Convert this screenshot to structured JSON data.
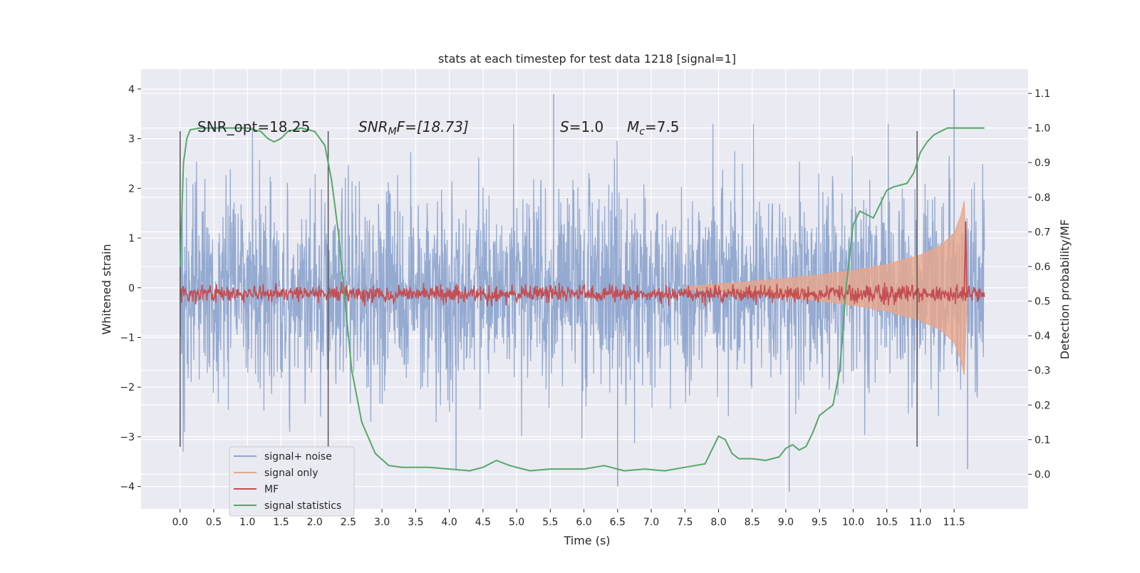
{
  "chart_data": {
    "type": "line",
    "title": "stats at each timestep for test data 1218 [signal=1]",
    "xlabel": "Time (s)",
    "ylabel": "Whitened strain",
    "y2label": "Detection probability/MF",
    "xlim": [
      -0.58,
      12.6
    ],
    "ylim": [
      -4.45,
      4.4
    ],
    "y2lim": [
      -0.1,
      1.17
    ],
    "x_ticks": [
      0.0,
      0.5,
      1.0,
      1.5,
      2.0,
      2.5,
      3.0,
      3.5,
      4.0,
      4.5,
      5.0,
      5.5,
      6.0,
      6.5,
      7.0,
      7.5,
      8.0,
      8.5,
      9.0,
      9.5,
      10.0,
      10.5,
      11.0,
      11.5
    ],
    "x_tick_labels": [
      "0.0",
      "0.5",
      "1.0",
      "1.5",
      "2.0",
      "2.5",
      "3.0",
      "3.5",
      "4.0",
      "4.5",
      "5.0",
      "5.5",
      "6.0",
      "6.5",
      "7.0",
      "7.5",
      "8.0",
      "8.5",
      "9.0",
      "9.5",
      "10.0",
      "10.5",
      "11.0",
      "11.5"
    ],
    "y_ticks": [
      -4,
      -3,
      -2,
      -1,
      0,
      1,
      2,
      3,
      4
    ],
    "y_tick_labels": [
      "−4",
      "−3",
      "−2",
      "−1",
      "0",
      "1",
      "2",
      "3",
      "4"
    ],
    "y2_ticks": [
      0.0,
      0.1,
      0.2,
      0.3,
      0.4,
      0.5,
      0.6,
      0.7,
      0.8,
      0.9,
      1.0,
      1.1
    ],
    "y2_tick_labels": [
      "0.0",
      "0.1",
      "0.2",
      "0.3",
      "0.4",
      "0.5",
      "0.6",
      "0.7",
      "0.8",
      "0.9",
      "1.0",
      "1.1"
    ],
    "grid": true,
    "legend": {
      "position": "lower-left",
      "entries": [
        {
          "label": "signal+ noise",
          "color": "#8fa6cf"
        },
        {
          "label": "signal only",
          "color": "#e9a68a"
        },
        {
          "label": "MF",
          "color": "#c44e52"
        },
        {
          "label": "signal statistics",
          "color": "#55a868"
        }
      ]
    },
    "annotations": {
      "snr_opt": "SNR_opt=18.25",
      "snr_mf_math": "SNR",
      "snr_mf_sub": "M",
      "snr_mf_rest": "F=[18.73]",
      "s_math": "S",
      "s_rest": "=1.0",
      "mc_math": "M",
      "mc_sub": "c",
      "mc_rest": "=7.5"
    },
    "vlines_x": [
      0.0,
      2.2,
      10.95
    ],
    "vlines_y_range": [
      -3.2,
      3.15
    ],
    "series": [
      {
        "name": "signal+ noise",
        "color": "#8fa6cf",
        "style": "dense noise, roughly Gaussian with sigma ~1 and peaks to about ±4",
        "x_range": [
          0.0,
          11.95
        ],
        "sigma": 1.0,
        "extremes": [
          [
            5.55,
            3.9
          ],
          [
            11.5,
            4.0
          ],
          [
            4.1,
            -3.65
          ],
          [
            9.05,
            -4.1
          ],
          [
            6.5,
            -4.0
          ],
          [
            11.7,
            -3.65
          ]
        ]
      },
      {
        "name": "signal only",
        "color": "#e9a68a",
        "style": "filled chirp envelope, amplitude grows from ~0 near 7.5 s to about ±1.7 at 11.6 s",
        "x": [
          7.5,
          8.0,
          8.5,
          9.0,
          9.5,
          10.0,
          10.5,
          11.0,
          11.3,
          11.5,
          11.6,
          11.65,
          11.7
        ],
        "amplitude": [
          0.02,
          0.08,
          0.13,
          0.19,
          0.26,
          0.35,
          0.47,
          0.66,
          0.85,
          1.1,
          1.45,
          1.75,
          0.0
        ]
      },
      {
        "name": "MF",
        "color": "#c44e52",
        "axis": "right",
        "style": "noisy near 0.5, peak at end",
        "x_range": [
          0.0,
          11.95
        ],
        "baseline": 0.52,
        "jitter": 0.012,
        "peaks": [
          [
            7.95,
            0.548
          ],
          [
            11.67,
            0.73
          ]
        ]
      },
      {
        "name": "signal statistics",
        "color": "#55a868",
        "axis": "right",
        "x": [
          0.0,
          0.05,
          0.1,
          0.15,
          0.3,
          0.6,
          1.0,
          1.2,
          1.3,
          1.4,
          1.5,
          1.6,
          1.8,
          2.0,
          2.15,
          2.25,
          2.35,
          2.45,
          2.55,
          2.7,
          2.9,
          3.1,
          3.3,
          3.5,
          3.7,
          4.0,
          4.3,
          4.5,
          4.7,
          4.9,
          5.2,
          5.5,
          5.8,
          6.0,
          6.3,
          6.6,
          6.9,
          7.2,
          7.5,
          7.8,
          7.9,
          8.0,
          8.1,
          8.2,
          8.3,
          8.5,
          8.7,
          8.9,
          9.0,
          9.1,
          9.2,
          9.3,
          9.4,
          9.5,
          9.6,
          9.7,
          9.8,
          9.9,
          10.0,
          10.1,
          10.2,
          10.3,
          10.4,
          10.5,
          10.6,
          10.8,
          10.9,
          11.0,
          11.1,
          11.2,
          11.3,
          11.4,
          11.6,
          11.95
        ],
        "y": [
          0.6,
          0.9,
          0.97,
          0.995,
          1.0,
          1.0,
          1.0,
          0.99,
          0.97,
          0.96,
          0.97,
          0.99,
          1.0,
          0.99,
          0.95,
          0.85,
          0.7,
          0.5,
          0.3,
          0.15,
          0.06,
          0.025,
          0.02,
          0.02,
          0.02,
          0.015,
          0.01,
          0.02,
          0.04,
          0.025,
          0.01,
          0.015,
          0.015,
          0.015,
          0.025,
          0.01,
          0.015,
          0.01,
          0.02,
          0.03,
          0.07,
          0.11,
          0.1,
          0.06,
          0.045,
          0.045,
          0.04,
          0.05,
          0.075,
          0.085,
          0.07,
          0.08,
          0.12,
          0.17,
          0.185,
          0.2,
          0.3,
          0.55,
          0.72,
          0.76,
          0.75,
          0.74,
          0.78,
          0.82,
          0.83,
          0.84,
          0.87,
          0.93,
          0.96,
          0.98,
          0.99,
          1.0,
          1.0,
          1.0
        ]
      }
    ]
  }
}
